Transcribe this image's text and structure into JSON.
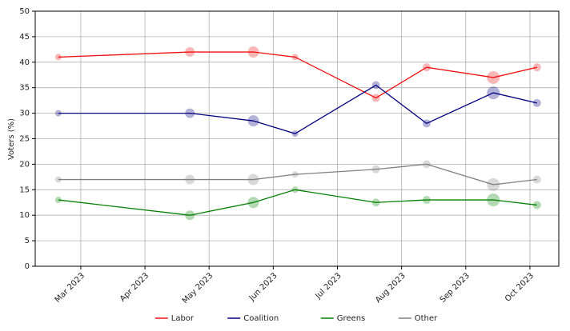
{
  "chart_data": {
    "type": "line",
    "y_label": "Voters (%)",
    "x": [
      2.65,
      4.7,
      5.69,
      6.34,
      7.6,
      8.39,
      9.43,
      10.11
    ],
    "sizes": [
      4,
      6,
      7,
      4,
      5,
      5,
      8,
      5
    ],
    "series": [
      {
        "name": "Labor",
        "color": "#ee1111",
        "values": [
          41,
          42,
          42,
          41,
          33,
          39,
          37,
          39
        ]
      },
      {
        "name": "Coalition",
        "color": "#000080",
        "values": [
          30,
          30,
          28.5,
          26,
          35.5,
          28,
          34,
          32
        ]
      },
      {
        "name": "Greens",
        "color": "#008000",
        "values": [
          13,
          10,
          12.5,
          15,
          12.5,
          13,
          13,
          12
        ]
      },
      {
        "name": "Other",
        "color": "#808080",
        "values": [
          17,
          17,
          17,
          18,
          19,
          20,
          16,
          17
        ]
      }
    ],
    "xlim": [
      2.29,
      10.45
    ],
    "xticks": [
      {
        "value": 3,
        "label": "Mar 2023"
      },
      {
        "value": 4,
        "label": "Apr 2023"
      },
      {
        "value": 5,
        "label": "May 2023"
      },
      {
        "value": 6,
        "label": "Jun 2023"
      },
      {
        "value": 7,
        "label": "Jul 2023"
      },
      {
        "value": 8,
        "label": "Aug 2023"
      },
      {
        "value": 9,
        "label": "Sep 2023"
      },
      {
        "value": 10,
        "label": "Oct 2023"
      }
    ],
    "ylim": [
      0,
      50
    ],
    "yticks": [
      0,
      5,
      10,
      15,
      20,
      25,
      30,
      35,
      40,
      45,
      50
    ],
    "grid": true,
    "legend": "bottom"
  }
}
